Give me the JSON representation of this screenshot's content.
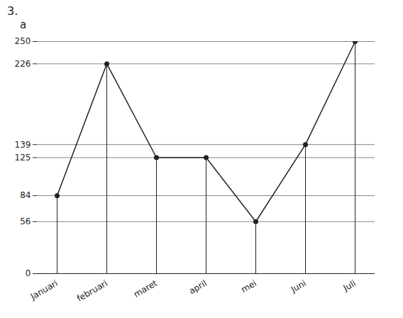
{
  "chart_data": {
    "type": "line",
    "title": "3.",
    "subtitle": "a",
    "categories": [
      "Januari",
      "februari",
      "maret",
      "april",
      "mei",
      "Juni",
      "Juli"
    ],
    "values": [
      84,
      226,
      125,
      125,
      56,
      139,
      250
    ],
    "color": "#222222",
    "marker": "circle",
    "ylim": [
      0,
      250
    ],
    "yticks": [
      0,
      56,
      84,
      125,
      139,
      226,
      250
    ],
    "grid": true
  }
}
